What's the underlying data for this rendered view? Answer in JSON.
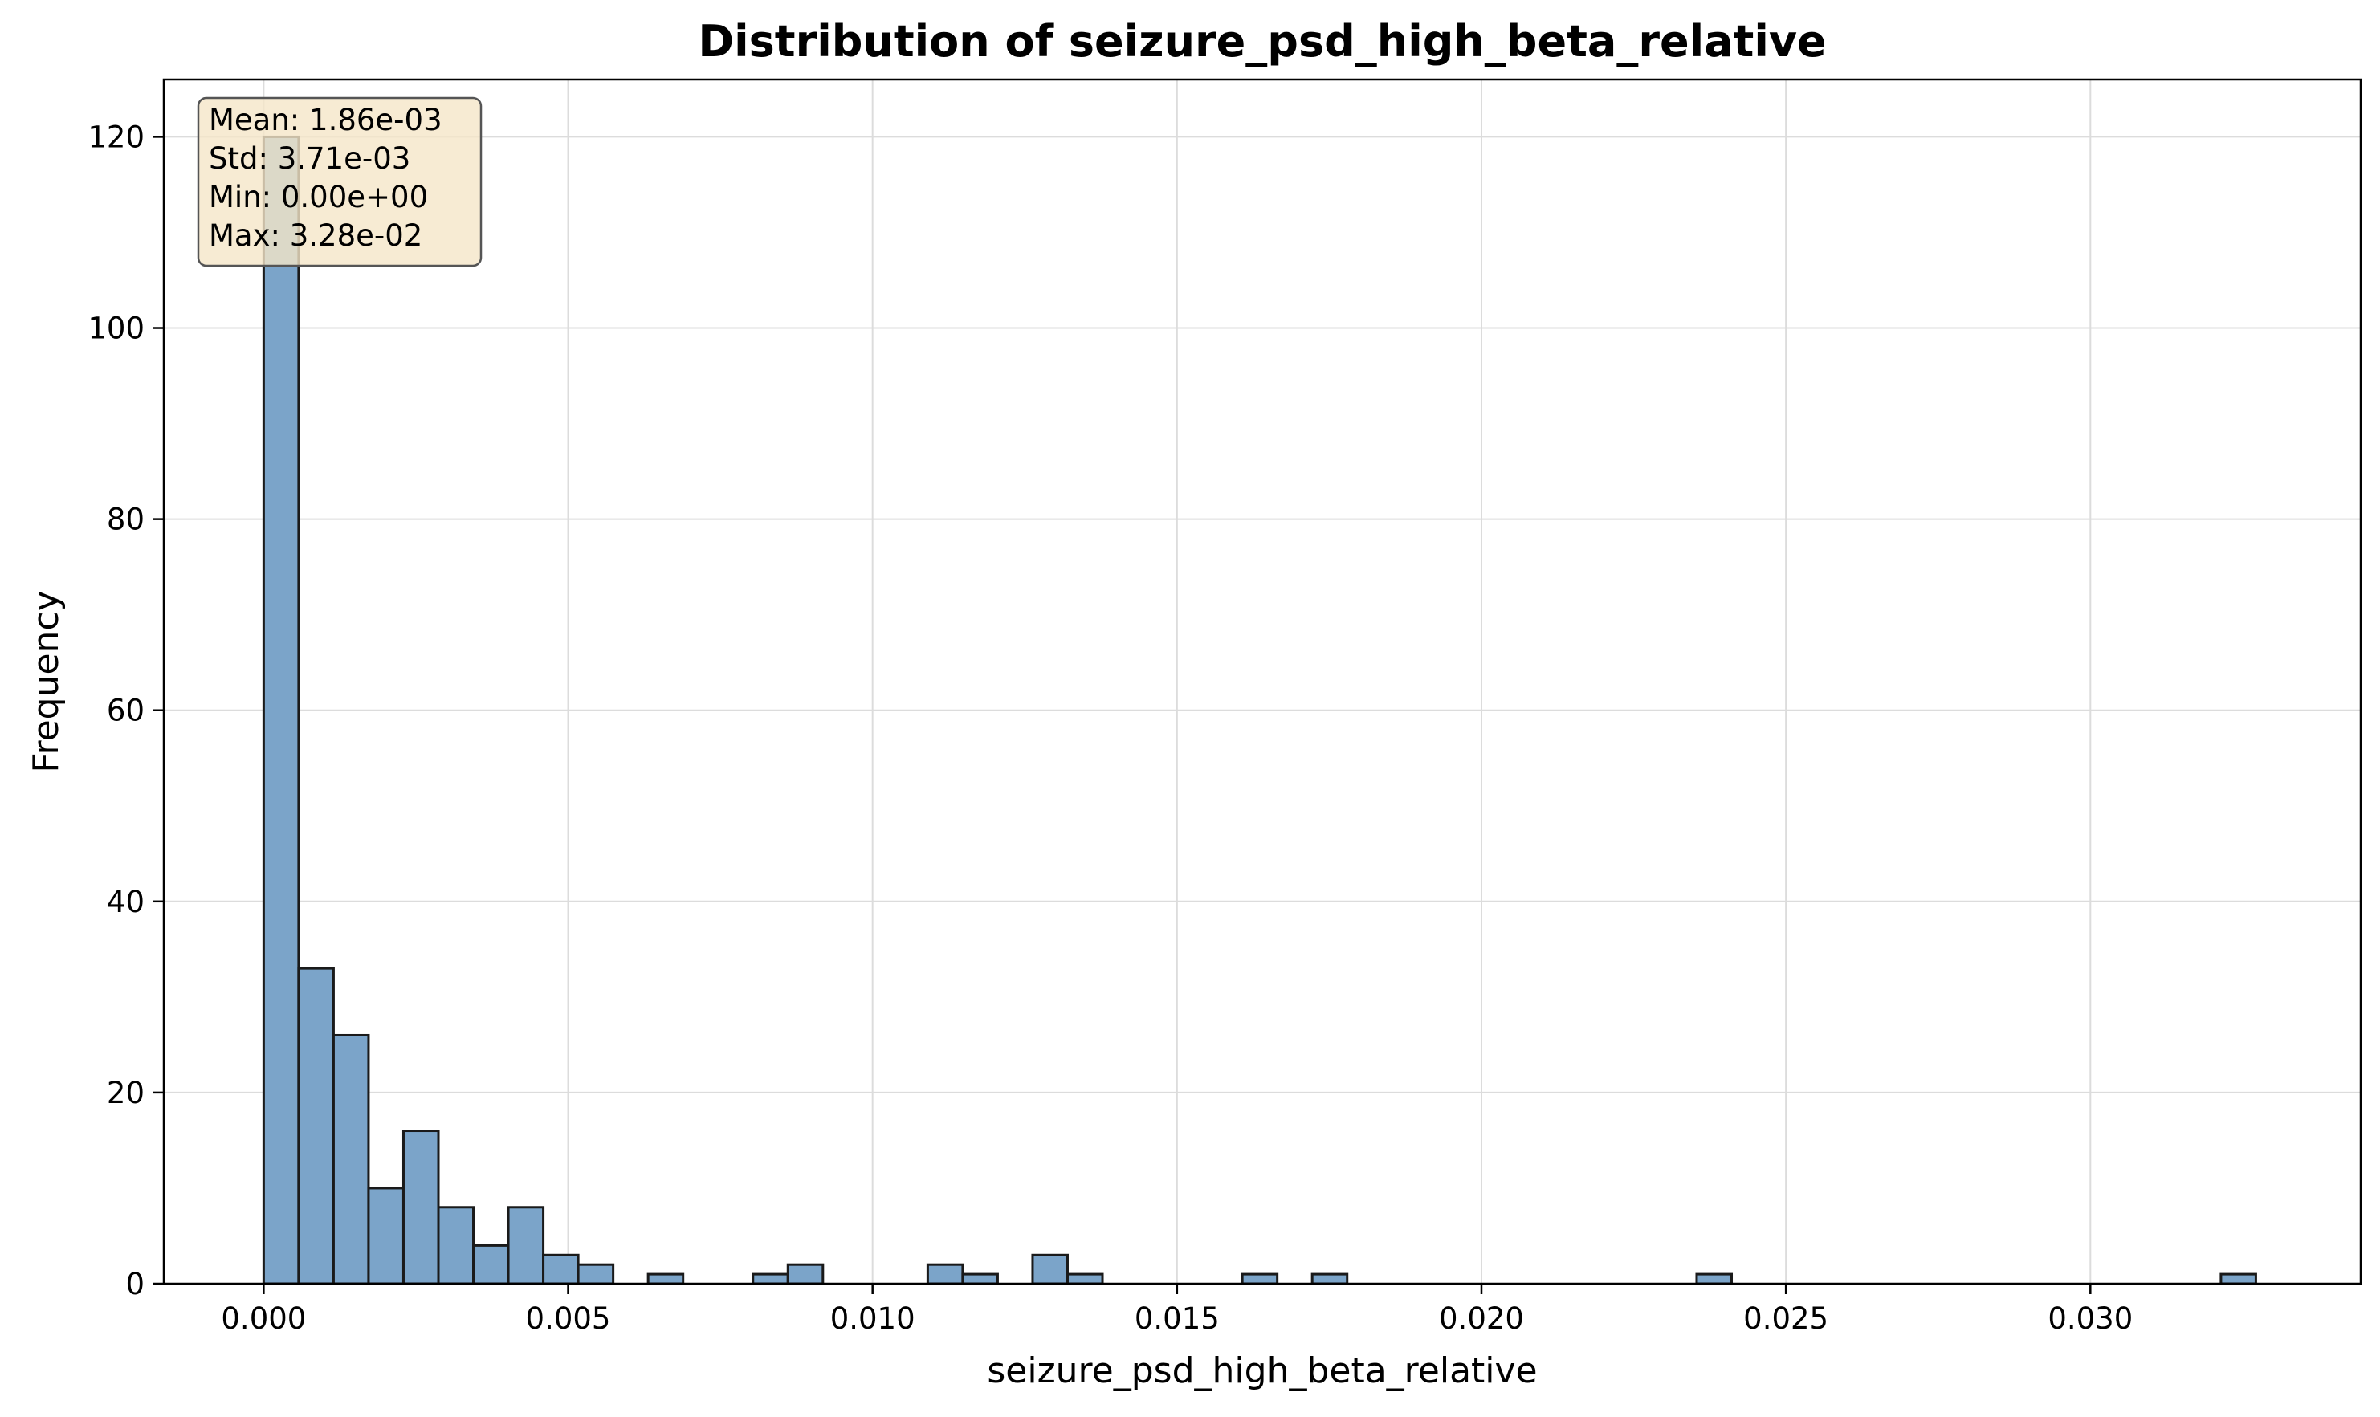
{
  "chart_data": {
    "type": "bar",
    "title": "Distribution of seizure_psd_high_beta_relative",
    "xlabel": "seizure_psd_high_beta_relative",
    "ylabel": "Frequency",
    "xlim": [
      -0.00164,
      0.03444
    ],
    "ylim": [
      0,
      126
    ],
    "xticks": [
      0.0,
      0.005,
      0.01,
      0.015,
      0.02,
      0.025,
      0.03
    ],
    "xtick_labels": [
      "0.000",
      "0.005",
      "0.010",
      "0.015",
      "0.020",
      "0.025",
      "0.030"
    ],
    "yticks": [
      0,
      20,
      40,
      60,
      80,
      100,
      120
    ],
    "ytick_labels": [
      "0",
      "20",
      "40",
      "60",
      "80",
      "100",
      "120"
    ],
    "grid": true,
    "bin_start": 0.0,
    "bin_width": 0.000574,
    "values": [
      120,
      33,
      26,
      10,
      16,
      8,
      4,
      8,
      3,
      2,
      0,
      1,
      0,
      0,
      1,
      2,
      0,
      0,
      0,
      2,
      1,
      0,
      3,
      1,
      0,
      0,
      0,
      0,
      1,
      0,
      1,
      0,
      0,
      0,
      0,
      0,
      0,
      0,
      0,
      0,
      0,
      1,
      0,
      0,
      0,
      0,
      0,
      0,
      0,
      0,
      0,
      0,
      0,
      0,
      0,
      0,
      1
    ],
    "bar_color": "#7ba4c9",
    "edge_color": "#1a1a1a",
    "stats_box": {
      "lines": [
        "Mean: 1.86e-03",
        "Std: 3.71e-03",
        "Min: 0.00e+00",
        "Max: 3.28e-02"
      ],
      "background": "#f5e6c8",
      "placement": "top-left"
    }
  }
}
